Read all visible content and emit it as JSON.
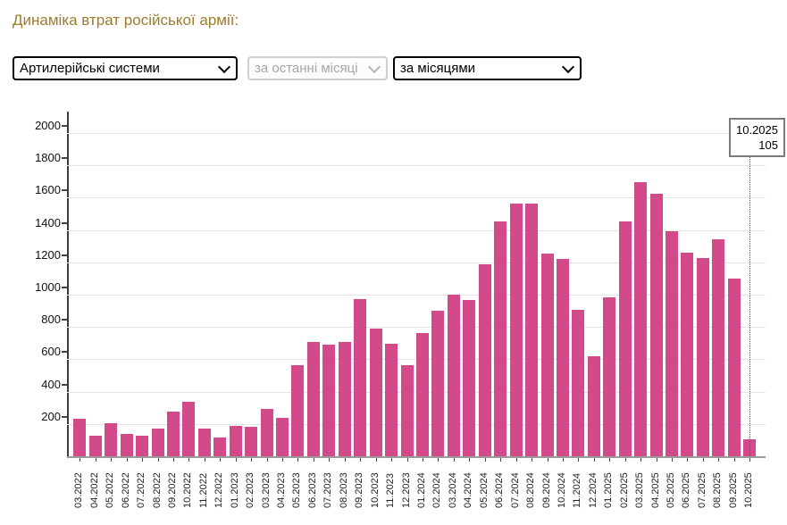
{
  "page": {
    "title": "Динаміка втрат російської армії:"
  },
  "controls": {
    "category_select": {
      "value": "Артилерійські системи"
    },
    "period_select": {
      "value": "за останні місяці",
      "disabled": true
    },
    "grouping_select": {
      "value": "за місяцями"
    }
  },
  "tooltip": {
    "month": "10.2025",
    "value": "105"
  },
  "chart_data": {
    "type": "bar",
    "title": "Динаміка втрат російської армії — Артилерійські системи, за місяцями",
    "xlabel": "",
    "ylabel": "",
    "ylim": [
      0,
      2000
    ],
    "ytick_step": 200,
    "yticks": [
      200,
      400,
      600,
      800,
      1000,
      1200,
      1400,
      1600,
      1800,
      2000
    ],
    "grid": true,
    "legend": "none",
    "bar_color": "#d34a8a",
    "highlighted_bar": "10.2025",
    "categories": [
      "03.2022",
      "04.2022",
      "05.2022",
      "06.2022",
      "07.2022",
      "08.2022",
      "09.2022",
      "10.2022",
      "11.2022",
      "12.2022",
      "01.2023",
      "02.2023",
      "03.2023",
      "04.2023",
      "05.2023",
      "06.2023",
      "07.2023",
      "08.2023",
      "09.2023",
      "10.2023",
      "11.2023",
      "12.2023",
      "01.2024",
      "02.2024",
      "03.2024",
      "04.2024",
      "05.2024",
      "06.2024",
      "07.2024",
      "08.2024",
      "09.2024",
      "10.2024",
      "11.2024",
      "12.2024",
      "01.2025",
      "02.2025",
      "03.2025",
      "04.2025",
      "05.2025",
      "06.2025",
      "07.2025",
      "08.2025",
      "09.2025",
      "10.2025"
    ],
    "values": [
      230,
      127,
      206,
      137,
      127,
      173,
      278,
      335,
      170,
      114,
      186,
      184,
      293,
      236,
      562,
      706,
      692,
      709,
      974,
      790,
      694,
      562,
      764,
      901,
      999,
      967,
      1190,
      1452,
      1566,
      1566,
      1254,
      1221,
      908,
      619,
      982,
      1453,
      1696,
      1625,
      1393,
      1260,
      1229,
      1343,
      1100,
      105
    ]
  },
  "colors": {
    "title_text": "#9c7c2c",
    "bar": "#d34a8a",
    "gridline": "#e3e3e3",
    "baseline": "#9b9b9b",
    "axis": "#3c3c3c",
    "tooltip_border": "#7a7a7a"
  }
}
